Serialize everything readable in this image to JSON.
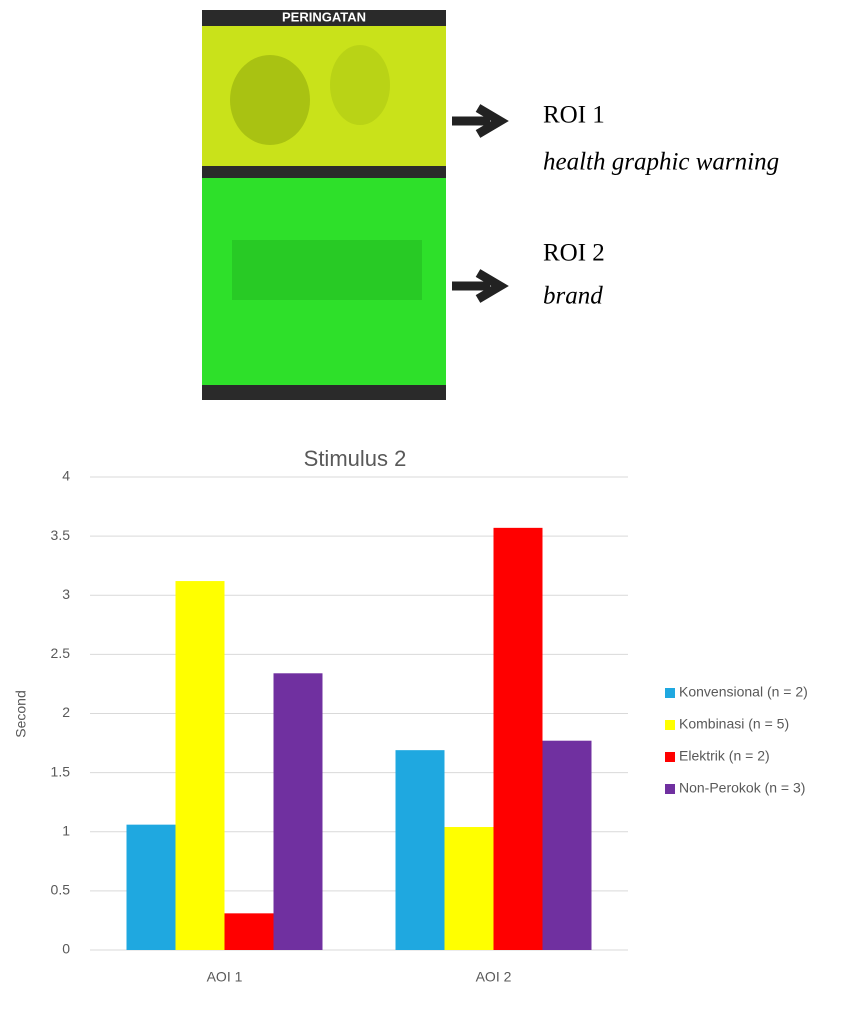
{
  "figure": {
    "pack_top_text": "PERINGATAN",
    "roi_1": {
      "label": "ROI 1",
      "description": "health graphic warning"
    },
    "roi_2": {
      "label": "ROI 2",
      "description": "brand"
    }
  },
  "chart_data": {
    "type": "bar",
    "title": "Stimulus 2",
    "y_label": "Second",
    "categories": [
      "AOI 1",
      "AOI 2"
    ],
    "series": [
      {
        "name": "Konvensional (n = 2)",
        "color": "#1fa8e0",
        "values": [
          1.06,
          1.69
        ]
      },
      {
        "name": "Kombinasi (n = 5)",
        "color": "#ffff00",
        "values": [
          3.12,
          1.04
        ]
      },
      {
        "name": "Elektrik (n = 2)",
        "color": "#ff0000",
        "values": [
          0.31,
          3.57
        ]
      },
      {
        "name": "Non-Perokok (n = 3)",
        "color": "#7030a0",
        "values": [
          2.34,
          1.77
        ]
      }
    ],
    "ylim": [
      0,
      4
    ],
    "yticks": [
      0,
      0.5,
      1,
      1.5,
      2,
      2.5,
      3,
      3.5,
      4
    ],
    "grid": true,
    "legend": "right"
  }
}
